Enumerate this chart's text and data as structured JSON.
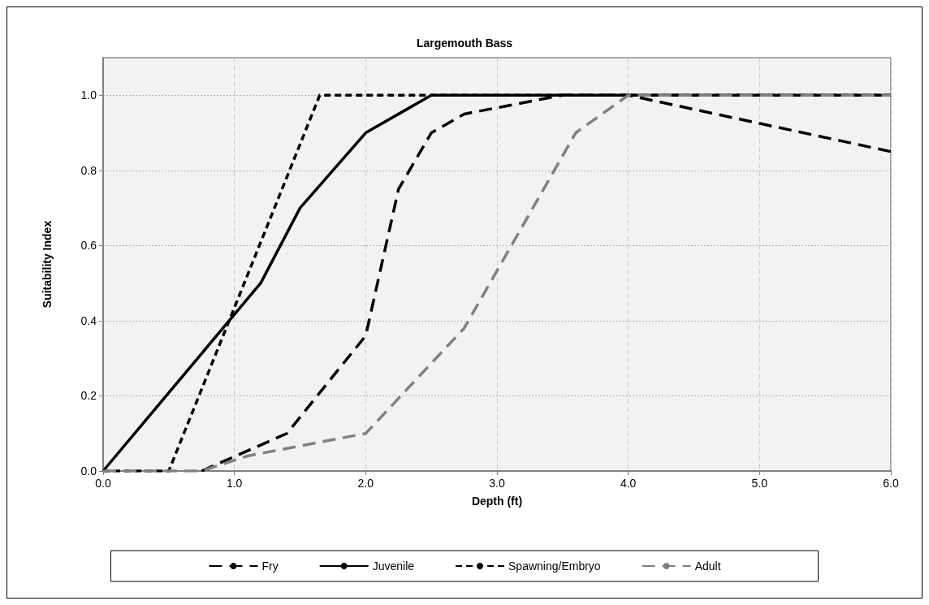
{
  "chart_data": {
    "type": "line",
    "title": "Largemouth Bass",
    "xlabel": "Depth (ft)",
    "ylabel": "Suitability Index",
    "series": [
      {
        "name": "Fry",
        "color": "#000000",
        "line_style": "dashed",
        "x": [
          0.75,
          1.4,
          2.0,
          2.25,
          2.5,
          2.75,
          3.5,
          4.0,
          6.0
        ],
        "values": [
          0,
          0.1,
          0.36,
          0.75,
          0.9,
          0.95,
          1.0,
          1.0,
          0.85
        ]
      },
      {
        "name": "Juvenile",
        "color": "#000000",
        "line_style": "solid",
        "x": [
          0,
          1.2,
          1.5,
          2.0,
          2.5,
          6.0
        ],
        "values": [
          0,
          0.5,
          0.7,
          0.9,
          1.0,
          1.0
        ]
      },
      {
        "name": "Spawning/Embryo",
        "color": "#000000",
        "line_style": "dashed",
        "x": [
          0,
          0.5,
          1.65,
          6.0
        ],
        "values": [
          0,
          0,
          1.0,
          1.0
        ]
      },
      {
        "name": "Adult",
        "color": "#808080",
        "line_style": "dashed",
        "x": [
          0,
          0.75,
          1.1,
          2.0,
          2.75,
          3.6,
          4.0,
          6.0
        ],
        "values": [
          0,
          0,
          0.04,
          0.1,
          0.38,
          0.9,
          1.0,
          1.0
        ]
      }
    ],
    "xlim": [
      0,
      6
    ],
    "xticks": [
      {
        "value": 0,
        "label": "0.0"
      },
      {
        "value": 1,
        "label": "1.0"
      },
      {
        "value": 2,
        "label": "2.0"
      },
      {
        "value": 3,
        "label": "3.0"
      },
      {
        "value": 4,
        "label": "4.0"
      },
      {
        "value": 5,
        "label": "5.0"
      },
      {
        "value": 6,
        "label": "6.0"
      }
    ],
    "ylim": [
      0,
      1.1
    ],
    "yticks": [
      {
        "value": 0,
        "label": "0.0"
      },
      {
        "value": 0.2,
        "label": "0.2"
      },
      {
        "value": 0.4,
        "label": "0.4"
      },
      {
        "value": 0.6,
        "label": "0.6"
      },
      {
        "value": 0.8,
        "label": "0.8"
      },
      {
        "value": 1.0,
        "label": "1.0"
      }
    ],
    "grid": true,
    "legend": "bottom",
    "marker": "none"
  }
}
